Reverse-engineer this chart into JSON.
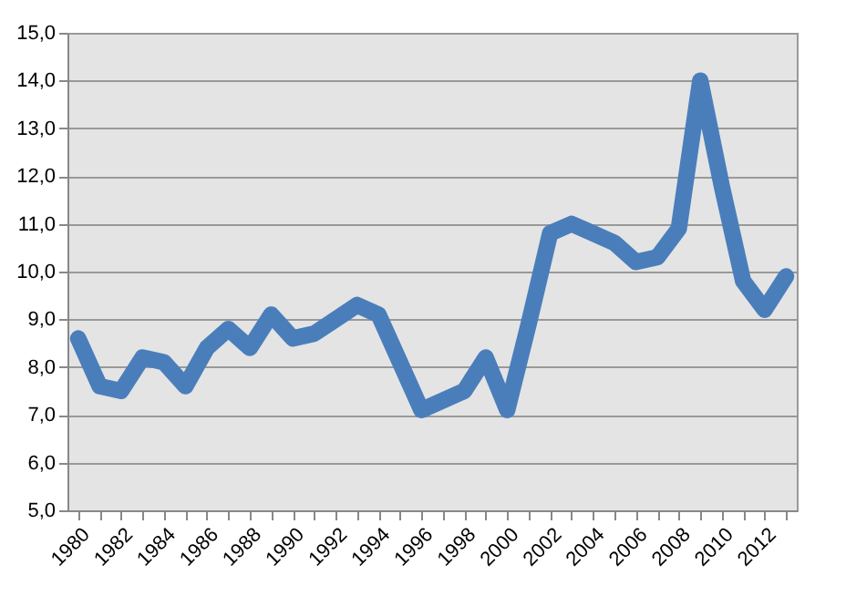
{
  "chart_data": {
    "type": "line",
    "categories": [
      "1980",
      null,
      "1982",
      null,
      "1984",
      null,
      "1986",
      null,
      "1988",
      null,
      "1990",
      null,
      "1992",
      null,
      "1994",
      null,
      "1996",
      null,
      "1998",
      null,
      "2000",
      null,
      "2002",
      null,
      "2004",
      null,
      "2006",
      null,
      "2008",
      null,
      "2010",
      null,
      "2012",
      null
    ],
    "series": [
      {
        "color": "#4a7ebb",
        "values": [
          8.6,
          7.6,
          7.5,
          8.2,
          8.1,
          7.6,
          8.4,
          8.8,
          8.4,
          9.1,
          8.6,
          8.7,
          9.0,
          9.3,
          9.1,
          8.1,
          7.1,
          7.3,
          7.5,
          8.2,
          7.1,
          8.9,
          10.8,
          11.0,
          10.8,
          10.6,
          10.2,
          10.3,
          10.9,
          14.0,
          11.8,
          9.8,
          9.2,
          9.9
        ]
      }
    ],
    "ylim": [
      5,
      15
    ],
    "yticks": [
      {
        "value": 5,
        "label": "5,0"
      },
      {
        "value": 6,
        "label": "6,0"
      },
      {
        "value": 7,
        "label": "7,0"
      },
      {
        "value": 8,
        "label": "8,0"
      },
      {
        "value": 9,
        "label": "9,0"
      },
      {
        "value": 10,
        "label": "10,0"
      },
      {
        "value": 11,
        "label": "11,0"
      },
      {
        "value": 12,
        "label": "12,0"
      },
      {
        "value": 13,
        "label": "13,0"
      },
      {
        "value": 14,
        "label": "14,0"
      },
      {
        "value": 15,
        "label": "15,0"
      }
    ],
    "grid": "y",
    "line_style": "solid"
  }
}
